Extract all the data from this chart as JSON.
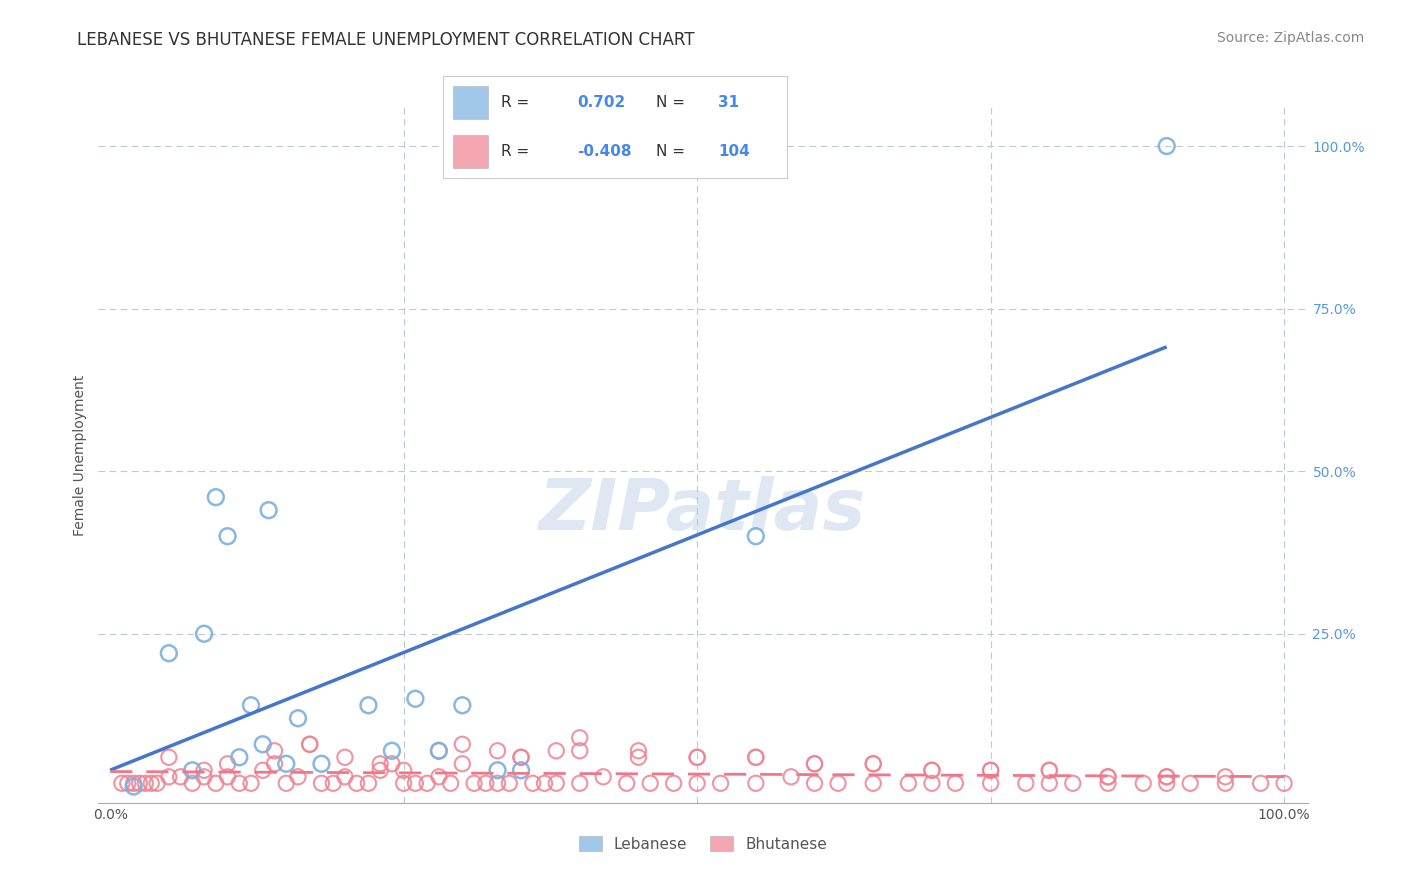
{
  "title": "LEBANESE VS BHUTANESE FEMALE UNEMPLOYMENT CORRELATION CHART",
  "source": "Source: ZipAtlas.com",
  "ylabel": "Female Unemployment",
  "watermark": "ZIPatlas",
  "legend_R_leb": "0.702",
  "legend_N_leb": "31",
  "legend_R_bhu": "-0.408",
  "legend_N_bhu": "104",
  "leb_color": "#7ab0e0",
  "bhu_color": "#f08090",
  "leb_line_color": "#4477cc",
  "bhu_line_color": "#ee7788",
  "grid_color": "#c0c8d8",
  "background_color": "#ffffff",
  "title_fontsize": 12,
  "axis_label_fontsize": 10,
  "tick_fontsize": 10,
  "source_fontsize": 10,
  "leb_scatter_x": [
    0.02,
    0.05,
    0.07,
    0.08,
    0.09,
    0.1,
    0.11,
    0.12,
    0.13,
    0.135,
    0.15,
    0.16,
    0.18,
    0.22,
    0.24,
    0.26,
    0.28,
    0.3,
    0.33,
    0.35,
    0.55,
    0.9
  ],
  "leb_scatter_y": [
    0.015,
    0.22,
    0.04,
    0.25,
    0.46,
    0.4,
    0.06,
    0.14,
    0.08,
    0.44,
    0.05,
    0.12,
    0.05,
    0.14,
    0.07,
    0.15,
    0.07,
    0.14,
    0.04,
    0.04,
    0.4,
    1.0
  ],
  "bhu_scatter_x": [
    0.01,
    0.015,
    0.02,
    0.025,
    0.03,
    0.035,
    0.04,
    0.05,
    0.06,
    0.07,
    0.08,
    0.09,
    0.1,
    0.11,
    0.12,
    0.13,
    0.14,
    0.15,
    0.16,
    0.17,
    0.18,
    0.19,
    0.2,
    0.21,
    0.22,
    0.23,
    0.24,
    0.25,
    0.26,
    0.27,
    0.28,
    0.29,
    0.3,
    0.31,
    0.32,
    0.33,
    0.34,
    0.35,
    0.36,
    0.37,
    0.38,
    0.4,
    0.42,
    0.44,
    0.46,
    0.48,
    0.5,
    0.52,
    0.55,
    0.58,
    0.6,
    0.62,
    0.65,
    0.68,
    0.7,
    0.72,
    0.75,
    0.78,
    0.8,
    0.82,
    0.85,
    0.88,
    0.9,
    0.92,
    0.95,
    0.98,
    1.0,
    0.05,
    0.08,
    0.1,
    0.14,
    0.17,
    0.2,
    0.23,
    0.28,
    0.33,
    0.38,
    0.4,
    0.45,
    0.5,
    0.55,
    0.6,
    0.65,
    0.7,
    0.75,
    0.8,
    0.85,
    0.9,
    0.95,
    0.25,
    0.3,
    0.35,
    0.4,
    0.45,
    0.5,
    0.55,
    0.6,
    0.65,
    0.7,
    0.75,
    0.8,
    0.85,
    0.9
  ],
  "bhu_scatter_y": [
    0.02,
    0.02,
    0.02,
    0.02,
    0.02,
    0.02,
    0.02,
    0.03,
    0.03,
    0.02,
    0.03,
    0.02,
    0.03,
    0.02,
    0.02,
    0.04,
    0.05,
    0.02,
    0.03,
    0.08,
    0.02,
    0.02,
    0.03,
    0.02,
    0.02,
    0.04,
    0.05,
    0.02,
    0.02,
    0.02,
    0.03,
    0.02,
    0.08,
    0.02,
    0.02,
    0.02,
    0.02,
    0.06,
    0.02,
    0.02,
    0.02,
    0.02,
    0.03,
    0.02,
    0.02,
    0.02,
    0.02,
    0.02,
    0.02,
    0.03,
    0.02,
    0.02,
    0.02,
    0.02,
    0.02,
    0.02,
    0.02,
    0.02,
    0.02,
    0.02,
    0.02,
    0.02,
    0.02,
    0.02,
    0.02,
    0.02,
    0.02,
    0.06,
    0.04,
    0.05,
    0.07,
    0.08,
    0.06,
    0.05,
    0.07,
    0.07,
    0.07,
    0.09,
    0.06,
    0.06,
    0.06,
    0.05,
    0.05,
    0.04,
    0.04,
    0.04,
    0.03,
    0.03,
    0.03,
    0.04,
    0.05,
    0.06,
    0.07,
    0.07,
    0.06,
    0.06,
    0.05,
    0.05,
    0.04,
    0.04,
    0.04,
    0.03,
    0.03
  ]
}
